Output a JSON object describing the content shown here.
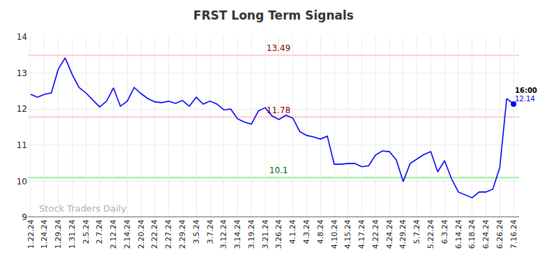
{
  "chart_data": {
    "type": "line",
    "title": "FRST Long Term Signals",
    "categories": [
      "1.22.24",
      null,
      "1.24.24",
      null,
      "1.29.24",
      null,
      "1.31.24",
      null,
      "2.5.24",
      null,
      "2.7.24",
      null,
      "2.12.24",
      null,
      "2.14.24",
      null,
      "2.20.24",
      null,
      "2.22.24",
      null,
      "2.27.24",
      null,
      "2.29.24",
      null,
      "3.5.24",
      null,
      "3.7.24",
      null,
      "3.12.24",
      null,
      "3.14.24",
      null,
      "3.19.24",
      null,
      "3.21.24",
      null,
      "3.26.24",
      null,
      "4.1.24",
      null,
      "4.3.24",
      null,
      "4.8.24",
      null,
      "4.10.24",
      null,
      "4.15.24",
      null,
      "4.17.24",
      null,
      "4.22.24",
      null,
      "4.24.24",
      null,
      "4.29.24",
      null,
      "5.7.24",
      null,
      "5.22.24",
      null,
      "6.3.24",
      null,
      "6.14.24",
      null,
      "6.18.24",
      null,
      "6.24.24",
      null,
      "6.26.24",
      null,
      "7.16.24"
    ],
    "values": [
      12.41,
      12.33,
      12.41,
      12.45,
      13.11,
      13.42,
      12.97,
      12.6,
      12.45,
      12.26,
      12.06,
      12.22,
      12.59,
      12.08,
      12.22,
      12.6,
      12.43,
      12.29,
      12.2,
      12.18,
      12.22,
      12.16,
      12.24,
      12.08,
      12.33,
      12.14,
      12.22,
      12.14,
      11.98,
      12.0,
      11.73,
      11.64,
      11.58,
      11.95,
      12.04,
      11.81,
      11.71,
      11.83,
      11.75,
      11.38,
      11.27,
      11.23,
      11.17,
      11.25,
      10.47,
      10.47,
      10.49,
      10.49,
      10.4,
      10.43,
      10.73,
      10.84,
      10.82,
      10.59,
      9.99,
      10.49,
      10.61,
      10.74,
      10.82,
      10.26,
      10.57,
      10.07,
      9.7,
      9.62,
      9.54,
      9.7,
      9.7,
      9.78,
      10.38,
      12.29,
      12.14
    ],
    "color": "#0000ff",
    "ylim": [
      9,
      14
    ],
    "yticks": [
      9,
      10,
      11,
      12,
      13,
      14
    ],
    "grid": true,
    "reference_lines": [
      {
        "value": 13.49,
        "label": "13.49",
        "color": "#ffcccc",
        "label_color": "#8b0000"
      },
      {
        "value": 11.78,
        "label": "11.78",
        "color": "#ffcccc",
        "label_color": "#8b0000"
      },
      {
        "value": 10.1,
        "label": "10.1",
        "color": "#90ee90",
        "label_color": "#006400"
      }
    ],
    "last_point": {
      "time": "16:00",
      "value_label": "12.14"
    },
    "watermark": "Stock Traders Daily"
  }
}
